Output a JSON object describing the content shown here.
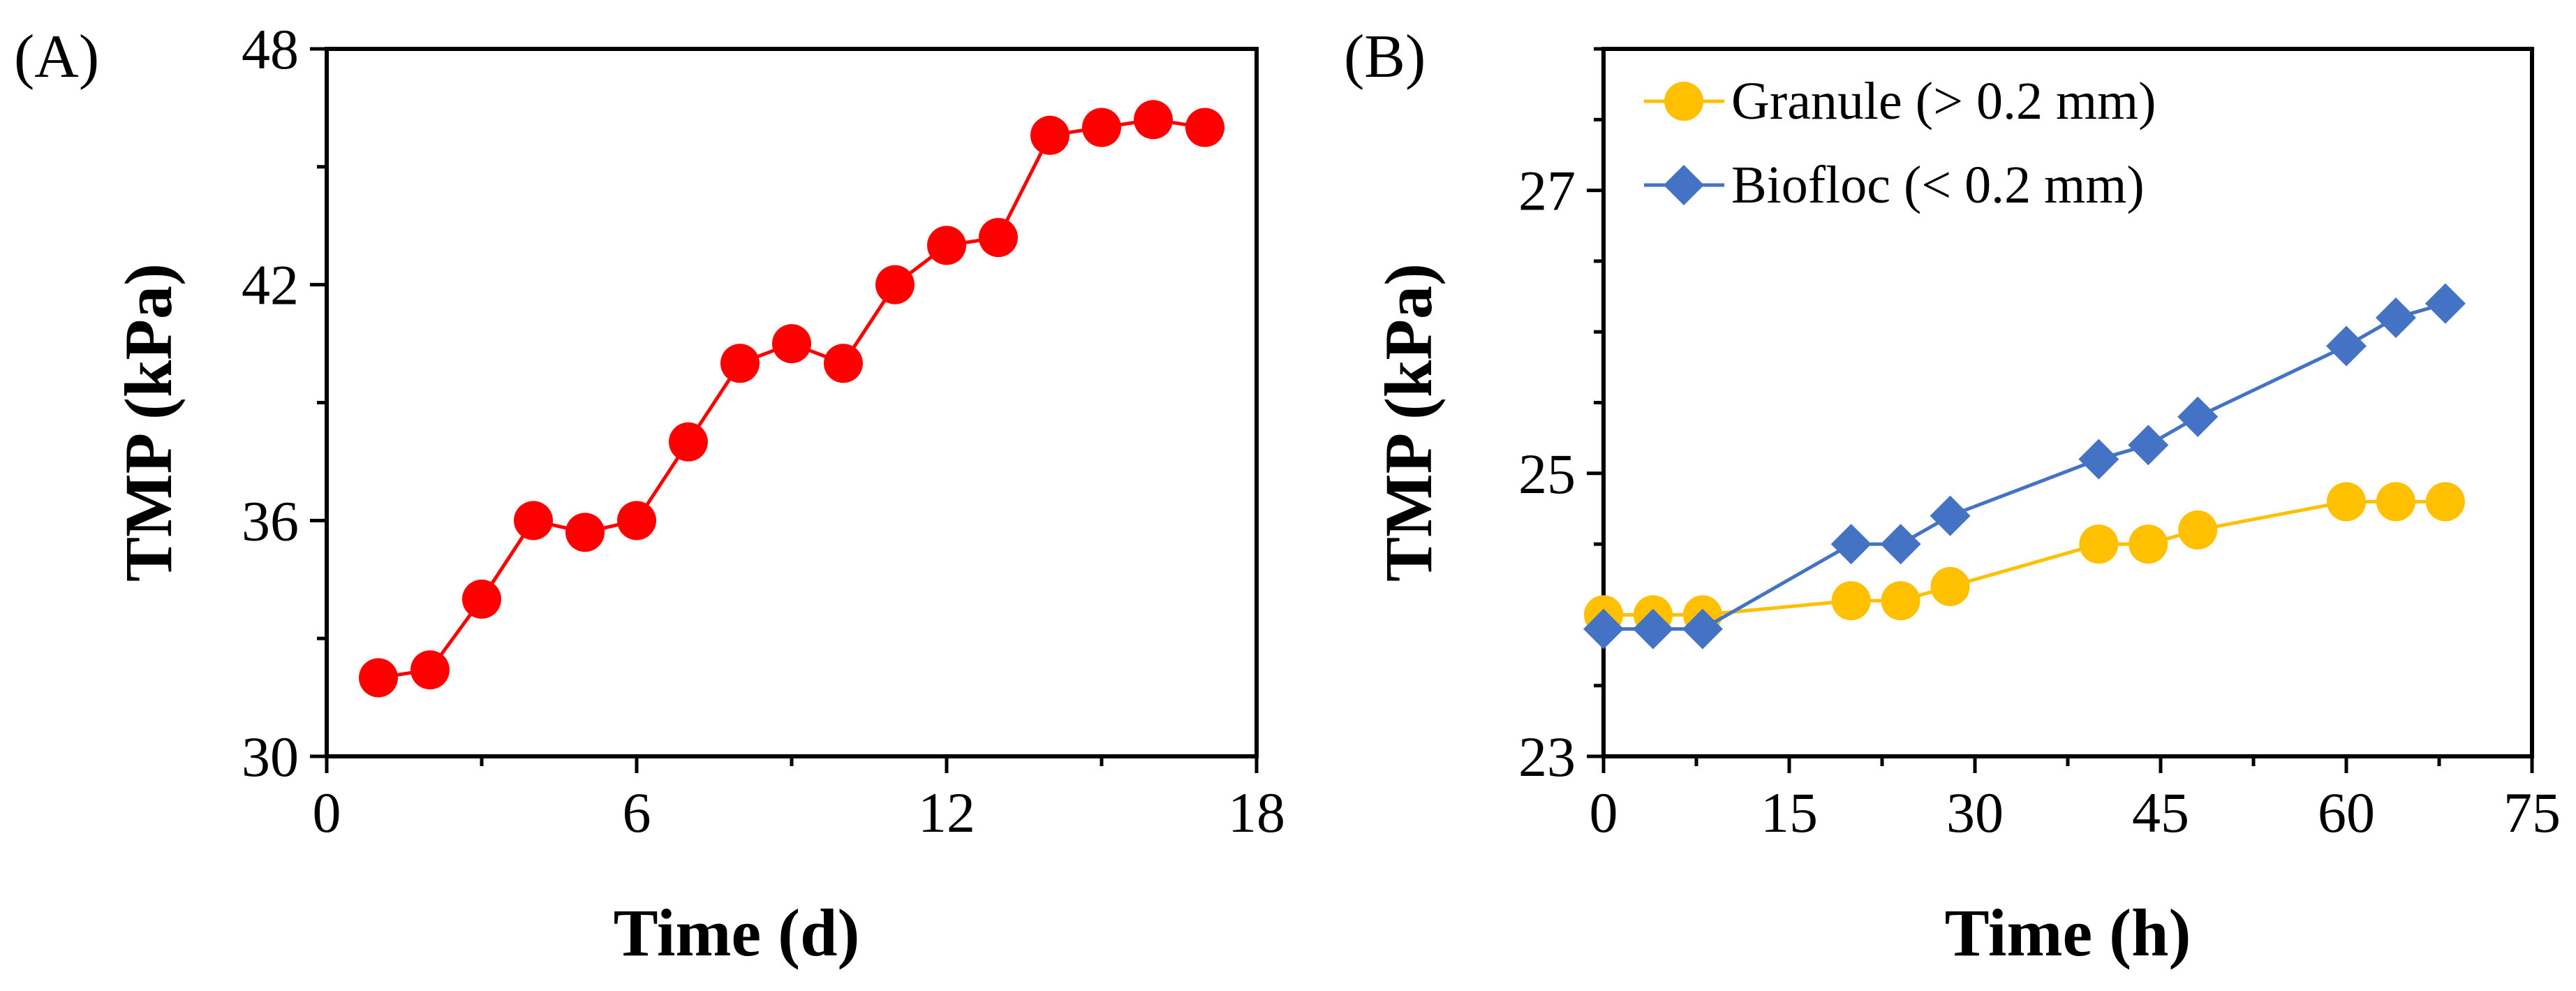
{
  "chart_data": [
    {
      "panel_label": "(A)",
      "type": "line",
      "xlabel": "Time (d)",
      "ylabel": "TMP (kPa)",
      "xlim": [
        0,
        18
      ],
      "ylim": [
        30,
        48
      ],
      "xticks": [
        "0",
        "6",
        "12",
        "18"
      ],
      "yticks": [
        "30",
        "36",
        "42",
        "48"
      ],
      "grid": false,
      "series": [
        {
          "name": "TMP",
          "color": "#ff0000",
          "marker": "circle",
          "x": [
            1,
            2,
            3,
            4,
            5,
            6,
            7,
            8,
            9,
            10,
            11,
            12,
            13,
            14,
            15,
            16,
            17
          ],
          "y": [
            32.0,
            32.2,
            34.0,
            36.0,
            35.7,
            36.0,
            38.0,
            40.0,
            40.5,
            40.0,
            42.0,
            43.0,
            43.2,
            45.8,
            46.0,
            46.2,
            46.0
          ]
        }
      ]
    },
    {
      "panel_label": "(B)",
      "type": "line",
      "xlabel": "Time (h)",
      "ylabel": "TMP (kPa)",
      "xlim": [
        0,
        75
      ],
      "ylim": [
        23,
        28
      ],
      "xticks": [
        "0",
        "15",
        "30",
        "45",
        "60",
        "75"
      ],
      "yticks": [
        "23",
        "25",
        "27"
      ],
      "grid": false,
      "legend_position": "top-left",
      "series": [
        {
          "name": "Granule (> 0.2 mm)",
          "color": "#ffc000",
          "marker": "circle",
          "x": [
            0,
            4,
            8,
            20,
            24,
            28,
            40,
            44,
            48,
            60,
            64,
            68
          ],
          "y": [
            24.0,
            24.0,
            24.0,
            24.1,
            24.1,
            24.2,
            24.5,
            24.5,
            24.6,
            24.8,
            24.8,
            24.8
          ]
        },
        {
          "name": "Biofloc (< 0.2 mm)",
          "color": "#4472c4",
          "marker": "diamond",
          "x": [
            0,
            4,
            8,
            20,
            24,
            28,
            40,
            44,
            48,
            60,
            64,
            68
          ],
          "y": [
            23.9,
            23.9,
            23.9,
            24.5,
            24.5,
            24.7,
            25.1,
            25.2,
            25.4,
            25.9,
            26.1,
            26.2
          ]
        }
      ]
    }
  ]
}
